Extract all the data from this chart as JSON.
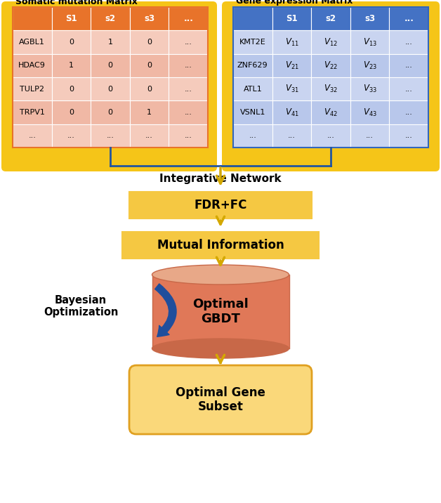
{
  "fig_width": 6.28,
  "fig_height": 7.16,
  "bg_color": "#FFFFFF",
  "somatic_title": "Somatic mutation Matrix",
  "gene_title": "Gene expression Matrix",
  "somatic_header_color": "#E8732A",
  "somatic_header_text_color": "#FFFFFF",
  "somatic_row_color_light": "#F5CBBC",
  "somatic_row_color_dark": "#F0B8A5",
  "somatic_header_cols": [
    "S1",
    "s2",
    "s3",
    "..."
  ],
  "somatic_rows": [
    [
      "AGBL1",
      "0",
      "1",
      "0",
      "..."
    ],
    [
      "HDAC9",
      "1",
      "0",
      "0",
      "..."
    ],
    [
      "TULP2",
      "0",
      "0",
      "0",
      "..."
    ],
    [
      "TRPV1",
      "0",
      "0",
      "1",
      "..."
    ],
    [
      "...",
      "...",
      "...",
      "...",
      "..."
    ]
  ],
  "gene_header_color": "#4472C4",
  "gene_header_text_color": "#FFFFFF",
  "gene_row_color_light": "#C9D4F0",
  "gene_row_color_dark": "#B8C7EB",
  "gene_header_cols": [
    "S1",
    "s2",
    "s3",
    "..."
  ],
  "gene_rows": [
    [
      "KMT2E",
      "V_{11}",
      "V_{12}",
      "V_{13}",
      "..."
    ],
    [
      "ZNF629",
      "V_{21}",
      "V_{22}",
      "V_{23}",
      "..."
    ],
    [
      "ATL1",
      "V_{31}",
      "V_{32}",
      "V_{33}",
      "..."
    ],
    [
      "VSNL1",
      "V_{41}",
      "V_{42}",
      "V_{43}",
      "..."
    ],
    [
      "...",
      "...",
      "...",
      "...",
      "..."
    ]
  ],
  "integrative_text": "Integrative Network",
  "fdr_text": "FDR+FC",
  "mi_text": "Mutual Information",
  "gbdt_text": "Optimal\nGBDT",
  "bayesian_text": "Bayesian\nOptimization",
  "subset_text": "Optimal Gene\nSubset",
  "yellow_bg": "#F5C518",
  "yellow_bg2": "#F9D55A",
  "box_yellow": "#F5C842",
  "box_light_yellow": "#FAD87A",
  "cylinder_top": "#E8A888",
  "cylinder_body": "#E07858",
  "cylinder_bottom": "#C86848",
  "arrow_yellow": "#D4A800",
  "blue_line": "#2255A0",
  "blue_arrow": "#1F4E9C",
  "somatic_border": "#E8732A",
  "gene_border": "#3366BB"
}
